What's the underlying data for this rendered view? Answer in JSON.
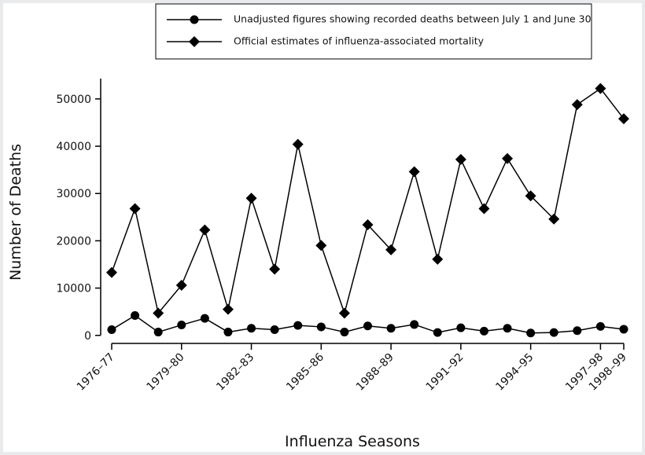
{
  "chart_data": {
    "type": "line",
    "x_label": "Influenza Seasons",
    "y_label": "Number of Deaths",
    "categories": [
      "1976–77",
      null,
      null,
      "1979–80",
      null,
      null,
      "1982–83",
      null,
      null,
      "1985–86",
      null,
      null,
      "1988–89",
      null,
      null,
      "1991–92",
      null,
      null,
      "1994–95",
      null,
      null,
      "1997–98",
      "1998–99"
    ],
    "series": [
      {
        "name": "Unadjusted figures showing recorded deaths between July 1 and June 30",
        "color": "#000000",
        "marker": "circle",
        "values": [
          1200,
          4200,
          700,
          2200,
          3600,
          700,
          1500,
          1200,
          2100,
          1800,
          700,
          2000,
          1500,
          2300,
          600,
          1600,
          900,
          1500,
          500,
          600,
          1000,
          1900,
          1300
        ]
      },
      {
        "name": "Official estimates of influenza-associated mortality",
        "color": "#000000",
        "marker": "diamond",
        "values": [
          13300,
          26800,
          4700,
          10600,
          22300,
          5500,
          29000,
          14000,
          40400,
          19000,
          4700,
          23400,
          18100,
          34600,
          16100,
          37200,
          26800,
          37400,
          29500,
          24600,
          48800,
          52200,
          45800
        ]
      }
    ],
    "ylim": [
      -1700,
      54300
    ],
    "yticks": [
      0,
      10000,
      20000,
      30000,
      40000,
      50000
    ],
    "grid": false,
    "legend": "top"
  }
}
